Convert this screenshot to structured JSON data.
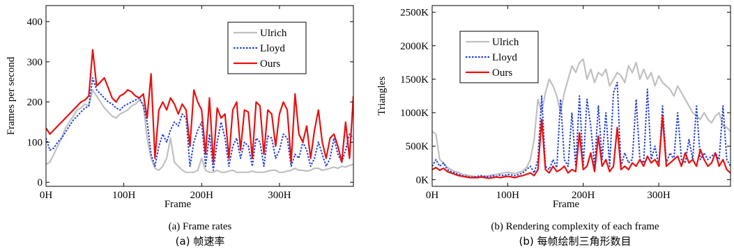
{
  "chart_data": [
    {
      "type": "line",
      "caption": "(a) Frame rates",
      "caption_cn": "(a)  帧速率",
      "xlabel": "Frame",
      "ylabel": "Frames per second",
      "xlim": [
        0,
        395
      ],
      "ylim": [
        -10,
        440
      ],
      "xticks": [
        0,
        100,
        200,
        300
      ],
      "xtick_labels": [
        "0H",
        "100H",
        "200H",
        "300H"
      ],
      "yticks": [
        0,
        100,
        200,
        300,
        400
      ],
      "ytick_labels": [
        "0",
        "100",
        "200",
        "300",
        "400"
      ],
      "grid": false,
      "legend_position": "top-right",
      "series": [
        {
          "name": "Ulrich",
          "color": "#c0c0c0",
          "style": "solid",
          "x": [
            0,
            5,
            10,
            15,
            20,
            25,
            30,
            35,
            40,
            45,
            50,
            55,
            60,
            65,
            70,
            75,
            80,
            85,
            90,
            95,
            100,
            105,
            110,
            115,
            120,
            125,
            130,
            135,
            140,
            145,
            150,
            155,
            160,
            165,
            170,
            175,
            180,
            185,
            190,
            195,
            200,
            205,
            210,
            215,
            220,
            225,
            230,
            235,
            240,
            245,
            250,
            255,
            260,
            265,
            270,
            275,
            280,
            285,
            290,
            295,
            300,
            305,
            310,
            315,
            320,
            325,
            330,
            335,
            340,
            345,
            350,
            355,
            360,
            365,
            370,
            375,
            380,
            385,
            390,
            395
          ],
          "y": [
            45,
            50,
            70,
            90,
            110,
            135,
            150,
            165,
            180,
            185,
            195,
            190,
            230,
            215,
            200,
            185,
            175,
            165,
            160,
            170,
            175,
            180,
            190,
            195,
            205,
            195,
            110,
            60,
            35,
            30,
            40,
            60,
            110,
            50,
            40,
            30,
            25,
            25,
            25,
            30,
            60,
            30,
            25,
            25,
            30,
            25,
            25,
            28,
            30,
            25,
            25,
            25,
            25,
            28,
            25,
            25,
            25,
            28,
            30,
            30,
            25,
            25,
            28,
            30,
            35,
            30,
            30,
            28,
            30,
            35,
            35,
            30,
            32,
            35,
            38,
            35,
            40,
            38,
            42,
            45
          ]
        },
        {
          "name": "Lloyd",
          "color": "#1f3fd8",
          "style": "dotted",
          "x": [
            0,
            5,
            10,
            15,
            20,
            25,
            30,
            35,
            40,
            45,
            50,
            55,
            60,
            65,
            70,
            75,
            80,
            85,
            90,
            95,
            100,
            105,
            110,
            115,
            120,
            125,
            130,
            135,
            140,
            145,
            150,
            155,
            160,
            165,
            170,
            175,
            180,
            185,
            190,
            195,
            200,
            205,
            210,
            215,
            220,
            225,
            230,
            235,
            240,
            245,
            250,
            255,
            260,
            265,
            270,
            275,
            280,
            285,
            290,
            295,
            300,
            305,
            310,
            315,
            320,
            325,
            330,
            335,
            340,
            345,
            350,
            355,
            360,
            365,
            370,
            375,
            380,
            385,
            390,
            395
          ],
          "y": [
            110,
            80,
            85,
            100,
            110,
            125,
            140,
            155,
            165,
            175,
            185,
            190,
            260,
            230,
            220,
            210,
            200,
            195,
            185,
            180,
            190,
            195,
            200,
            205,
            210,
            190,
            150,
            70,
            40,
            90,
            120,
            100,
            130,
            150,
            140,
            170,
            160,
            40,
            100,
            130,
            150,
            40,
            120,
            30,
            100,
            150,
            110,
            40,
            90,
            110,
            60,
            100,
            90,
            40,
            110,
            100,
            40,
            115,
            110,
            60,
            80,
            120,
            110,
            40,
            70,
            60,
            100,
            80,
            40,
            60,
            100,
            70,
            40,
            60,
            110,
            70,
            50,
            80,
            120,
            110
          ]
        },
        {
          "name": "Ours",
          "color": "#e81010",
          "style": "solid",
          "x": [
            0,
            5,
            10,
            15,
            20,
            25,
            30,
            35,
            40,
            45,
            50,
            55,
            60,
            65,
            70,
            75,
            80,
            85,
            90,
            95,
            100,
            105,
            110,
            115,
            120,
            125,
            130,
            135,
            140,
            145,
            150,
            155,
            160,
            165,
            170,
            175,
            180,
            185,
            190,
            195,
            200,
            205,
            210,
            215,
            220,
            225,
            230,
            235,
            240,
            245,
            250,
            255,
            260,
            265,
            270,
            275,
            280,
            285,
            290,
            295,
            300,
            305,
            310,
            315,
            320,
            325,
            330,
            335,
            340,
            345,
            350,
            355,
            360,
            365,
            370,
            375,
            380,
            385,
            390,
            395
          ],
          "y": [
            135,
            120,
            130,
            140,
            150,
            160,
            170,
            180,
            190,
            200,
            205,
            215,
            330,
            240,
            250,
            260,
            235,
            210,
            200,
            215,
            220,
            230,
            225,
            215,
            210,
            220,
            160,
            270,
            60,
            180,
            200,
            180,
            210,
            195,
            170,
            195,
            180,
            90,
            230,
            200,
            180,
            70,
            210,
            50,
            185,
            160,
            170,
            60,
            180,
            200,
            80,
            180,
            175,
            60,
            200,
            190,
            70,
            180,
            170,
            90,
            170,
            200,
            180,
            50,
            220,
            120,
            100,
            140,
            60,
            130,
            180,
            100,
            60,
            110,
            120,
            90,
            50,
            150,
            60,
            215
          ]
        }
      ]
    },
    {
      "type": "line",
      "caption": "(b) Rendering complexity of each frame",
      "caption_cn": "(b)  每帧绘制三角形数目",
      "xlabel": "Frame",
      "ylabel": "Triangles",
      "xlim": [
        0,
        395
      ],
      "ylim": [
        -100,
        2600
      ],
      "xticks": [
        0,
        100,
        200,
        300
      ],
      "xtick_labels": [
        "0H",
        "100H",
        "200H",
        "300H"
      ],
      "yticks": [
        0,
        500,
        1000,
        1500,
        2000,
        2500
      ],
      "ytick_labels": [
        "0K",
        "500K",
        "1000K",
        "1500K",
        "2000K",
        "2500K"
      ],
      "grid": false,
      "legend_position": "top-left",
      "series": [
        {
          "name": "Ulrich",
          "color": "#c0c0c0",
          "style": "solid",
          "x": [
            0,
            5,
            10,
            15,
            20,
            25,
            30,
            35,
            40,
            45,
            50,
            55,
            60,
            65,
            70,
            75,
            80,
            85,
            90,
            95,
            100,
            105,
            110,
            115,
            120,
            125,
            130,
            135,
            140,
            145,
            150,
            155,
            160,
            165,
            170,
            175,
            180,
            185,
            190,
            195,
            200,
            205,
            210,
            215,
            220,
            225,
            230,
            235,
            240,
            245,
            250,
            255,
            260,
            265,
            270,
            275,
            280,
            285,
            290,
            295,
            300,
            305,
            310,
            315,
            320,
            325,
            330,
            335,
            340,
            345,
            350,
            355,
            360,
            365,
            370,
            375,
            380,
            385,
            390,
            395
          ],
          "y": [
            720,
            680,
            300,
            250,
            180,
            150,
            120,
            110,
            80,
            70,
            60,
            50,
            40,
            40,
            50,
            60,
            70,
            80,
            90,
            100,
            110,
            100,
            90,
            110,
            130,
            180,
            300,
            600,
            1200,
            1000,
            1300,
            1500,
            1400,
            1250,
            1000,
            1300,
            1500,
            1700,
            1600,
            1750,
            1800,
            1500,
            1650,
            1450,
            1600,
            1550,
            1650,
            1400,
            1500,
            1600,
            1550,
            1450,
            1700,
            1600,
            1750,
            1500,
            1650,
            1500,
            1600,
            1400,
            1550,
            1450,
            1400,
            1350,
            1250,
            1400,
            1300,
            1200,
            1100,
            1000,
            950,
            900,
            1000,
            900,
            850,
            950,
            1000,
            800,
            780,
            720
          ]
        },
        {
          "name": "Lloyd",
          "color": "#1f3fd8",
          "style": "dotted",
          "x": [
            0,
            5,
            10,
            15,
            20,
            25,
            30,
            35,
            40,
            45,
            50,
            55,
            60,
            65,
            70,
            75,
            80,
            85,
            90,
            95,
            100,
            105,
            110,
            115,
            120,
            125,
            130,
            135,
            140,
            145,
            150,
            155,
            160,
            165,
            170,
            175,
            180,
            185,
            190,
            195,
            200,
            205,
            210,
            215,
            220,
            225,
            230,
            235,
            240,
            245,
            250,
            255,
            260,
            265,
            270,
            275,
            280,
            285,
            290,
            295,
            300,
            305,
            310,
            315,
            320,
            325,
            330,
            335,
            340,
            345,
            350,
            355,
            360,
            365,
            370,
            375,
            380,
            385,
            390,
            395
          ],
          "y": [
            200,
            300,
            200,
            250,
            150,
            120,
            100,
            80,
            60,
            50,
            40,
            40,
            50,
            60,
            50,
            40,
            60,
            50,
            70,
            60,
            80,
            70,
            60,
            80,
            100,
            150,
            200,
            100,
            300,
            1250,
            200,
            150,
            300,
            180,
            1200,
            300,
            200,
            1000,
            200,
            1250,
            200,
            1200,
            800,
            200,
            1100,
            300,
            1000,
            200,
            1300,
            1450,
            200,
            400,
            250,
            300,
            1200,
            300,
            250,
            1350,
            300,
            500,
            200,
            1100,
            250,
            400,
            300,
            1000,
            300,
            250,
            600,
            300,
            1100,
            300,
            400,
            300,
            350,
            400,
            300,
            1100,
            300,
            200
          ]
        },
        {
          "name": "Ours",
          "color": "#e81010",
          "style": "solid",
          "x": [
            0,
            5,
            10,
            15,
            20,
            25,
            30,
            35,
            40,
            45,
            50,
            55,
            60,
            65,
            70,
            75,
            80,
            85,
            90,
            95,
            100,
            105,
            110,
            115,
            120,
            125,
            130,
            135,
            140,
            145,
            150,
            155,
            160,
            165,
            170,
            175,
            180,
            185,
            190,
            195,
            200,
            205,
            210,
            215,
            220,
            225,
            230,
            235,
            240,
            245,
            250,
            255,
            260,
            265,
            270,
            275,
            280,
            285,
            290,
            295,
            300,
            305,
            310,
            315,
            320,
            325,
            330,
            335,
            340,
            345,
            350,
            355,
            360,
            365,
            370,
            375,
            380,
            385,
            390,
            395
          ],
          "y": [
            150,
            180,
            140,
            170,
            120,
            100,
            80,
            60,
            50,
            40,
            30,
            30,
            30,
            40,
            30,
            20,
            30,
            40,
            30,
            40,
            50,
            40,
            30,
            50,
            60,
            80,
            100,
            60,
            150,
            900,
            150,
            100,
            200,
            120,
            150,
            200,
            100,
            150,
            120,
            700,
            150,
            200,
            400,
            120,
            650,
            200,
            300,
            120,
            200,
            780,
            150,
            200,
            150,
            250,
            200,
            300,
            200,
            350,
            250,
            300,
            200,
            950,
            200,
            250,
            300,
            350,
            200,
            400,
            250,
            300,
            200,
            450,
            300,
            200,
            250,
            400,
            200,
            300,
            150,
            100
          ]
        }
      ]
    }
  ]
}
